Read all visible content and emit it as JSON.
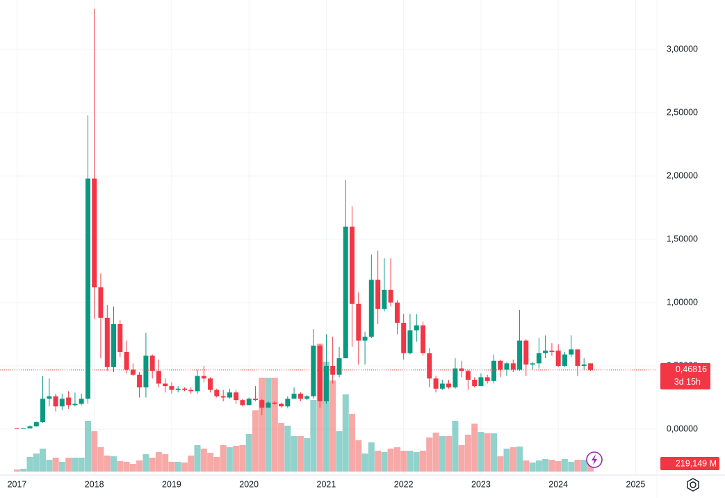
{
  "chart_data": {
    "type": "candlestick",
    "x": [
      2017.0,
      2017.083,
      2017.167,
      2017.25,
      2017.333,
      2017.417,
      2017.5,
      2017.583,
      2017.667,
      2017.75,
      2017.833,
      2017.917,
      2018.0,
      2018.083,
      2018.167,
      2018.25,
      2018.333,
      2018.417,
      2018.5,
      2018.583,
      2018.667,
      2018.75,
      2018.833,
      2018.917,
      2019.0,
      2019.083,
      2019.167,
      2019.25,
      2019.333,
      2019.417,
      2019.5,
      2019.583,
      2019.667,
      2019.75,
      2019.833,
      2019.917,
      2020.0,
      2020.083,
      2020.167,
      2020.25,
      2020.333,
      2020.417,
      2020.5,
      2020.583,
      2020.667,
      2020.75,
      2020.833,
      2020.917,
      2021.0,
      2021.083,
      2021.167,
      2021.25,
      2021.333,
      2021.417,
      2021.5,
      2021.583,
      2021.667,
      2021.75,
      2021.833,
      2021.917,
      2022.0,
      2022.083,
      2022.167,
      2022.25,
      2022.333,
      2022.417,
      2022.5,
      2022.583,
      2022.667,
      2022.75,
      2022.833,
      2022.917,
      2023.0,
      2023.083,
      2023.167,
      2023.25,
      2023.333,
      2023.417,
      2023.5,
      2023.583,
      2023.667,
      2023.75,
      2023.833,
      2023.917,
      2024.0,
      2024.083,
      2024.167,
      2024.25,
      2024.333,
      2024.417
    ],
    "open": [
      0.0065,
      0.0063,
      0.0063,
      0.022,
      0.055,
      0.24,
      0.26,
      0.18,
      0.25,
      0.19,
      0.2,
      0.24,
      1.98,
      1.12,
      0.88,
      0.49,
      0.83,
      0.61,
      0.47,
      0.43,
      0.33,
      0.58,
      0.46,
      0.36,
      0.34,
      0.31,
      0.32,
      0.31,
      0.3,
      0.42,
      0.4,
      0.31,
      0.26,
      0.25,
      0.29,
      0.23,
      0.19,
      0.24,
      0.23,
      0.17,
      0.21,
      0.2,
      0.18,
      0.24,
      0.28,
      0.24,
      0.26,
      0.66,
      0.22,
      0.5,
      0.43,
      0.56,
      1.6,
      0.99,
      0.7,
      0.73,
      1.18,
      0.95,
      1.1,
      1.0,
      0.84,
      0.6,
      0.78,
      0.82,
      0.6,
      0.4,
      0.32,
      0.36,
      0.33,
      0.48,
      0.46,
      0.39,
      0.34,
      0.41,
      0.38,
      0.54,
      0.47,
      0.52,
      0.47,
      0.7,
      0.51,
      0.52,
      0.6,
      0.62,
      0.62,
      0.5,
      0.59,
      0.63,
      0.5,
      0.52
    ],
    "high": [
      0.0072,
      0.0066,
      0.03,
      0.06,
      0.42,
      0.4,
      0.28,
      0.28,
      0.3,
      0.29,
      0.28,
      2.48,
      3.32,
      1.23,
      0.98,
      0.97,
      0.86,
      0.7,
      0.52,
      0.45,
      0.76,
      0.59,
      0.55,
      0.4,
      0.37,
      0.34,
      0.33,
      0.33,
      0.47,
      0.5,
      0.41,
      0.32,
      0.31,
      0.32,
      0.31,
      0.24,
      0.25,
      0.34,
      0.24,
      0.22,
      0.22,
      0.21,
      0.26,
      0.33,
      0.29,
      0.27,
      0.79,
      0.67,
      0.75,
      0.73,
      0.65,
      1.97,
      1.76,
      1.08,
      0.77,
      1.38,
      1.41,
      1.35,
      1.35,
      1.02,
      0.91,
      0.91,
      0.91,
      0.85,
      0.64,
      0.42,
      0.39,
      0.39,
      0.56,
      0.54,
      0.47,
      0.41,
      0.44,
      0.43,
      0.59,
      0.55,
      0.53,
      0.55,
      0.94,
      0.71,
      0.53,
      0.72,
      0.74,
      0.68,
      0.67,
      0.61,
      0.74,
      0.63,
      0.56,
      0.52
    ],
    "low": [
      0.006,
      0.0058,
      0.006,
      0.02,
      0.05,
      0.18,
      0.14,
      0.15,
      0.16,
      0.18,
      0.19,
      0.2,
      0.87,
      0.56,
      0.46,
      0.45,
      0.57,
      0.44,
      0.42,
      0.25,
      0.25,
      0.4,
      0.33,
      0.29,
      0.28,
      0.29,
      0.3,
      0.28,
      0.28,
      0.37,
      0.29,
      0.25,
      0.22,
      0.24,
      0.2,
      0.18,
      0.19,
      0.22,
      0.11,
      0.17,
      0.19,
      0.17,
      0.17,
      0.24,
      0.22,
      0.23,
      0.24,
      0.17,
      0.2,
      0.36,
      0.41,
      0.56,
      0.65,
      0.51,
      0.51,
      0.72,
      0.83,
      0.93,
      0.97,
      0.75,
      0.55,
      0.59,
      0.69,
      0.58,
      0.33,
      0.29,
      0.31,
      0.32,
      0.32,
      0.41,
      0.31,
      0.33,
      0.34,
      0.36,
      0.36,
      0.41,
      0.42,
      0.45,
      0.46,
      0.42,
      0.47,
      0.48,
      0.56,
      0.58,
      0.49,
      0.49,
      0.57,
      0.42,
      0.47,
      0.46
    ],
    "close": [
      0.0063,
      0.0063,
      0.022,
      0.055,
      0.24,
      0.26,
      0.18,
      0.24,
      0.19,
      0.2,
      0.24,
      1.98,
      1.12,
      0.88,
      0.49,
      0.83,
      0.61,
      0.47,
      0.43,
      0.33,
      0.58,
      0.46,
      0.36,
      0.34,
      0.31,
      0.32,
      0.31,
      0.3,
      0.42,
      0.4,
      0.31,
      0.26,
      0.25,
      0.29,
      0.23,
      0.19,
      0.24,
      0.23,
      0.17,
      0.21,
      0.2,
      0.18,
      0.24,
      0.28,
      0.24,
      0.26,
      0.66,
      0.22,
      0.5,
      0.43,
      0.56,
      1.6,
      0.99,
      0.7,
      0.73,
      1.18,
      0.95,
      1.1,
      1.0,
      0.84,
      0.6,
      0.78,
      0.82,
      0.6,
      0.4,
      0.32,
      0.36,
      0.33,
      0.48,
      0.46,
      0.39,
      0.34,
      0.41,
      0.38,
      0.54,
      0.47,
      0.52,
      0.47,
      0.7,
      0.51,
      0.52,
      0.6,
      0.62,
      0.61,
      0.5,
      0.59,
      0.63,
      0.5,
      0.51,
      0.46816
    ],
    "volume": [
      37,
      49,
      256,
      317,
      403,
      207,
      244,
      171,
      244,
      244,
      244,
      891,
      708,
      427,
      281,
      268,
      183,
      171,
      134,
      195,
      305,
      244,
      342,
      305,
      171,
      171,
      159,
      281,
      464,
      403,
      329,
      256,
      464,
      427,
      451,
      464,
      659,
      1074,
      1647,
      1647,
      1647,
      854,
      805,
      622,
      622,
      586,
      1257,
      2245,
      1928,
      1598,
      708,
      1354,
      1013,
      549,
      317,
      512,
      366,
      342,
      403,
      427,
      366,
      366,
      342,
      366,
      598,
      683,
      622,
      622,
      891,
      464,
      647,
      842,
      695,
      671,
      671,
      268,
      403,
      427,
      439,
      195,
      159,
      195,
      220,
      207,
      183,
      220,
      171,
      207,
      207,
      219.149
    ],
    "up_color": "#089981",
    "down_color": "#f23645",
    "up_volume_color": "rgba(38,166,154,0.5)",
    "down_volume_color": "rgba(239,83,80,0.5)",
    "xlim": [
      2016.78,
      2025.23
    ],
    "xticks": [
      2017,
      2018,
      2019,
      2020,
      2021,
      2022,
      2023,
      2024,
      2025
    ],
    "ylim": [
      -0.335,
      3.39
    ],
    "yticks": [
      {
        "value": 0,
        "label": "0,00000"
      },
      {
        "value": 0.5,
        "label": "0,50000"
      },
      {
        "value": 1,
        "label": "1,00000"
      },
      {
        "value": 1.5,
        "label": "1,50000"
      },
      {
        "value": 2,
        "label": "2,00000"
      },
      {
        "value": 2.5,
        "label": "2,50000"
      },
      {
        "value": 3,
        "label": "3,00000"
      }
    ],
    "grid": true,
    "last_price_label": "0,46816",
    "countdown": "3d 15h",
    "last_volume_label": "219,149 M"
  }
}
